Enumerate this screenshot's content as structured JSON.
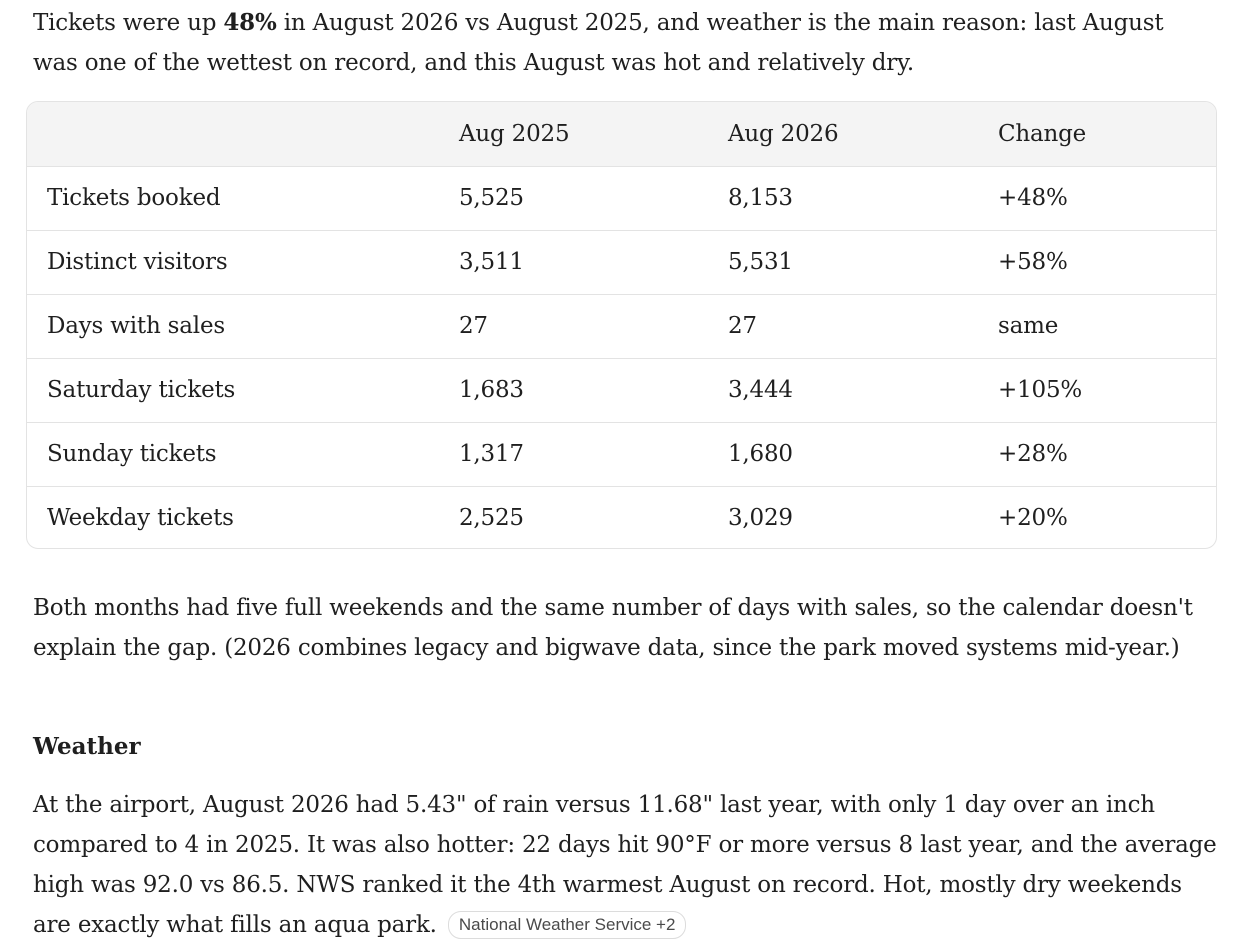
{
  "intro": {
    "before_bold": "Tickets were up ",
    "bold": "48%",
    "after_bold": " in August 2026 vs August 2025, and weather is the main reason: last August was one of the wettest on record, and this August was hot and relatively dry."
  },
  "table": {
    "headers": [
      "",
      "Aug 2025",
      "Aug 2026",
      "Change"
    ],
    "rows": [
      [
        "Tickets booked",
        "5,525",
        "8,153",
        "+48%"
      ],
      [
        "Distinct visitors",
        "3,511",
        "5,531",
        "+58%"
      ],
      [
        "Days with sales",
        "27",
        "27",
        "same"
      ],
      [
        "Saturday tickets",
        "1,683",
        "3,444",
        "+105%"
      ],
      [
        "Sunday tickets",
        "1,317",
        "1,680",
        "+28%"
      ],
      [
        "Weekday tickets",
        "2,525",
        "3,029",
        "+20%"
      ]
    ]
  },
  "paragraph2": "Both months had five full weekends and the same number of days with sales, so the calendar doesn't explain the gap. (2026 combines legacy and bigwave data, since the park moved systems mid-year.)",
  "weather_heading": "Weather",
  "paragraph3": "At the airport, August 2026 had 5.43\" of rain versus 11.68\" last year, with only 1 day over an inch compared to 4 in 2025. It was also hotter: 22 days hit 90°F or more versus 8 last year, and the average high was 92.0 vs 86.5. NWS ranked it the 4th warmest August on record. Hot, mostly dry weekends are exactly what fills an aqua park.",
  "source_chip": "National Weather Service +2"
}
